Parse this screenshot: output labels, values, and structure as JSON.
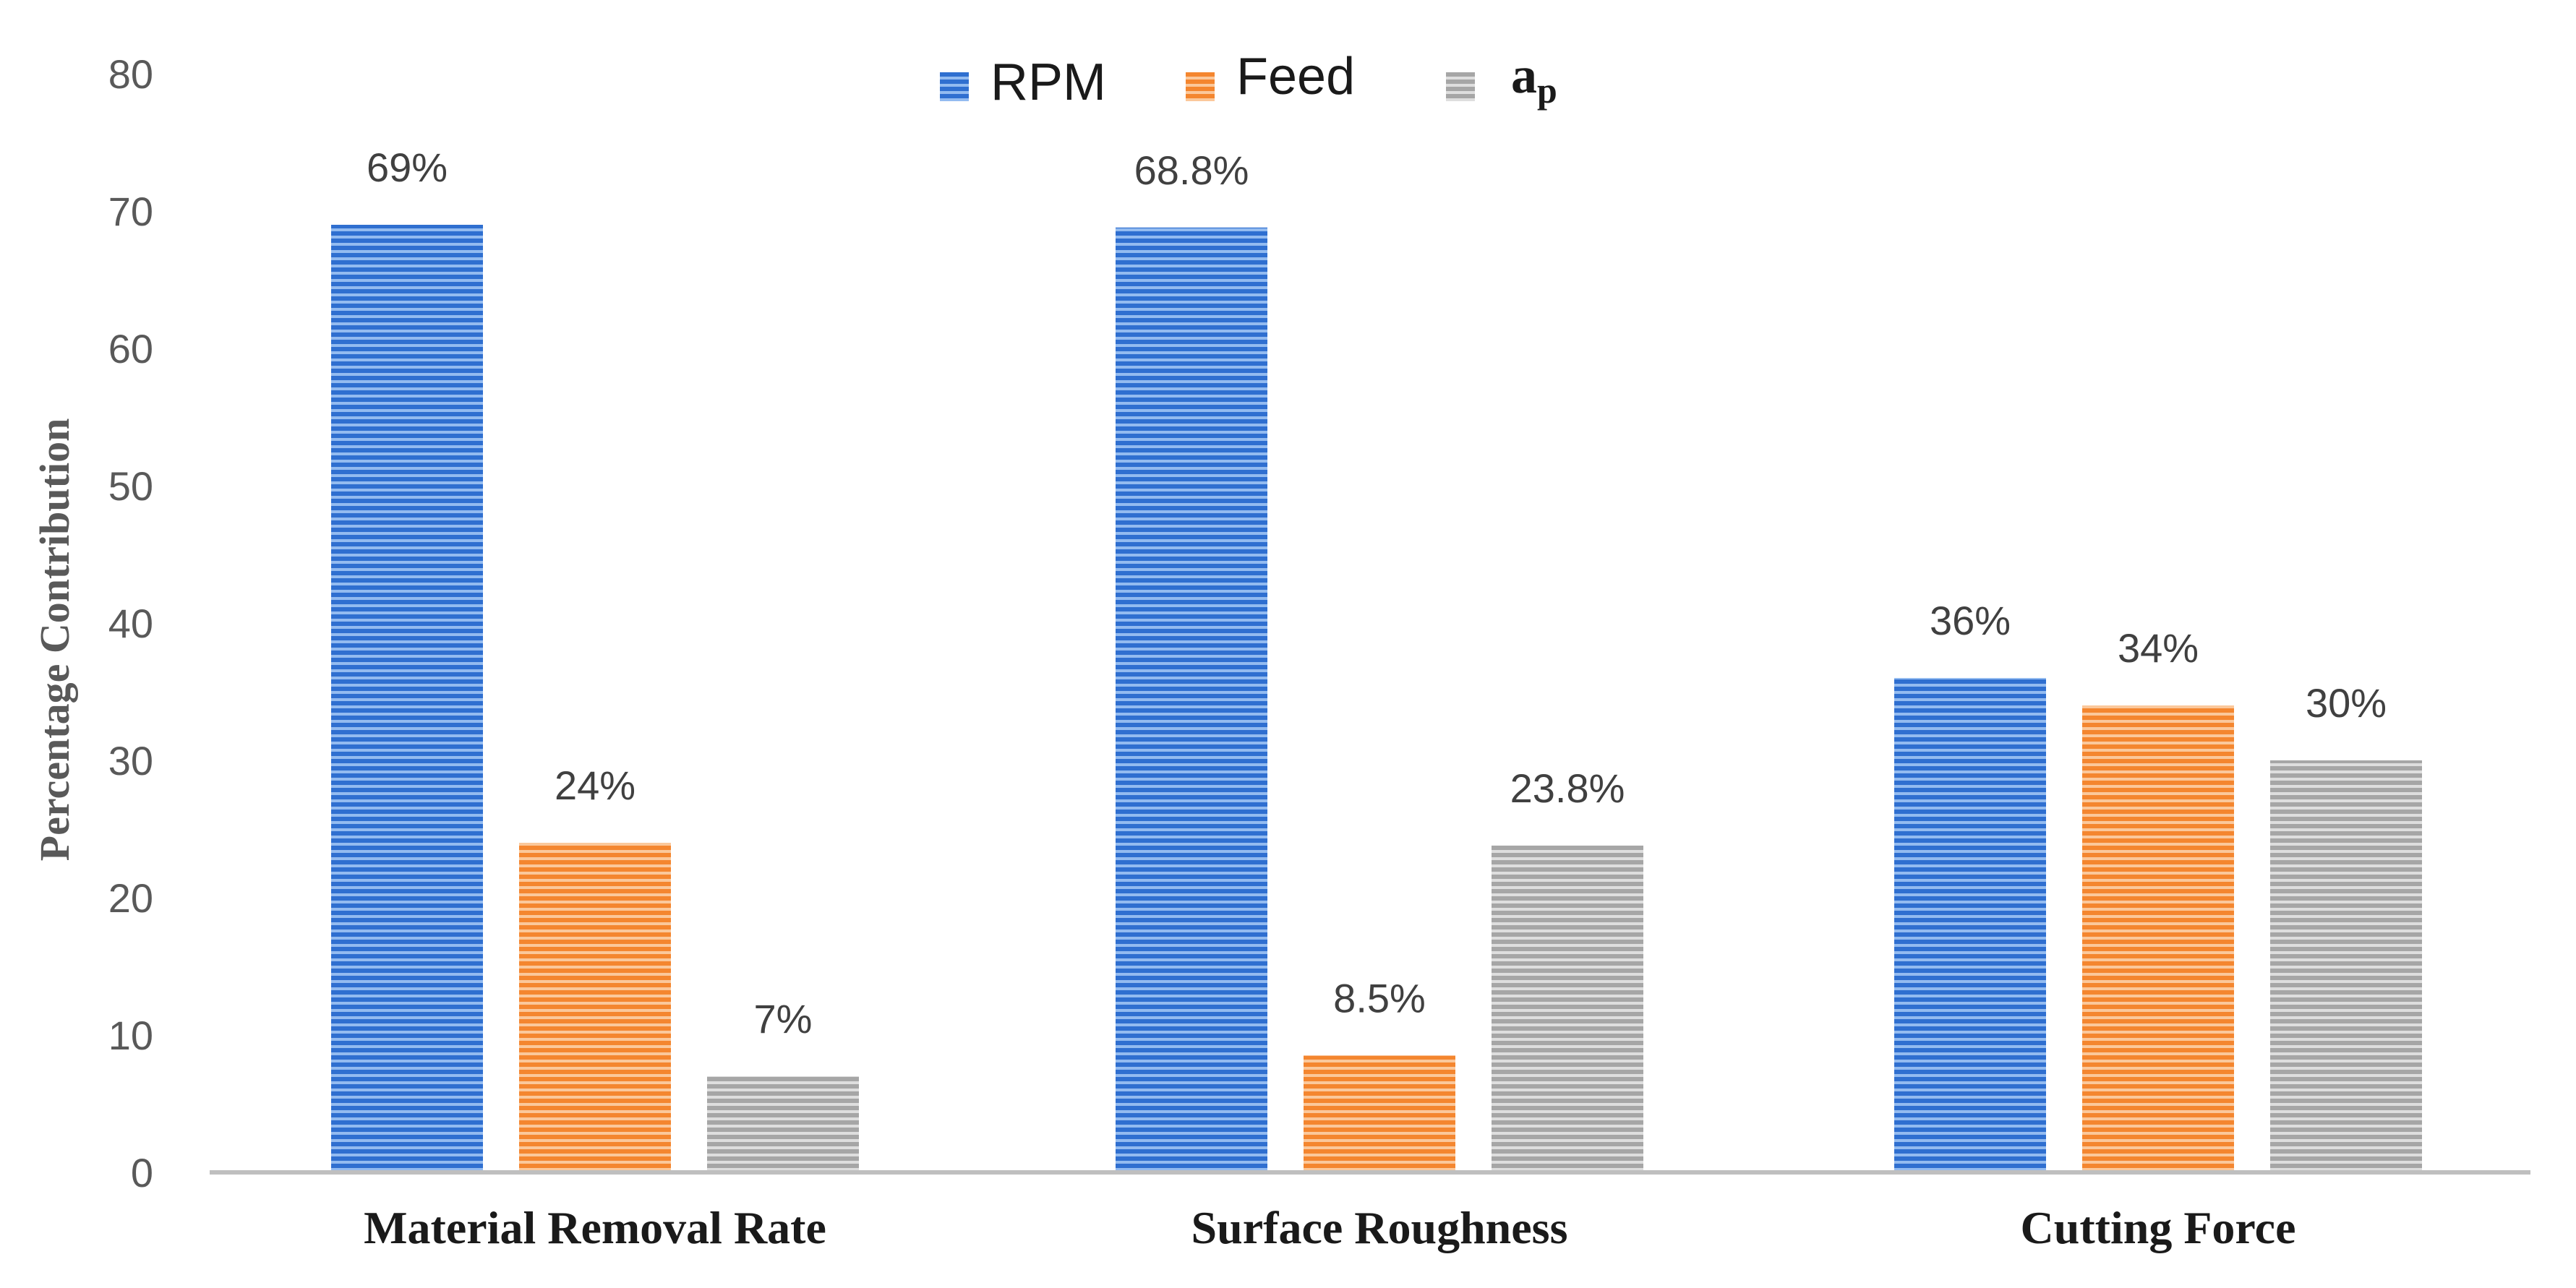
{
  "chart_data": {
    "type": "bar",
    "title": "",
    "xlabel": "",
    "ylabel": "Percentage Contribution",
    "ylim": [
      0,
      80
    ],
    "yticks": [
      0,
      10,
      20,
      30,
      40,
      50,
      60,
      70,
      80
    ],
    "grid": false,
    "legend_position": "top-center",
    "categories": [
      "Material Removal Rate",
      "Surface Roughness",
      "Cutting Force"
    ],
    "series": [
      {
        "name": "RPM",
        "color": "#2f6fd0",
        "values": [
          69,
          68.8,
          36
        ],
        "labels": [
          "69%",
          "68.8%",
          "36%"
        ]
      },
      {
        "name": "Feed",
        "color": "#f4862f",
        "values": [
          24,
          8.5,
          34
        ],
        "labels": [
          "24%",
          "8.5%",
          "34%"
        ]
      },
      {
        "name": "a",
        "subscript": "p",
        "color": "#a6a6a6",
        "values": [
          7,
          23.8,
          30
        ],
        "labels": [
          "7%",
          "23.8%",
          "30%"
        ]
      }
    ]
  }
}
